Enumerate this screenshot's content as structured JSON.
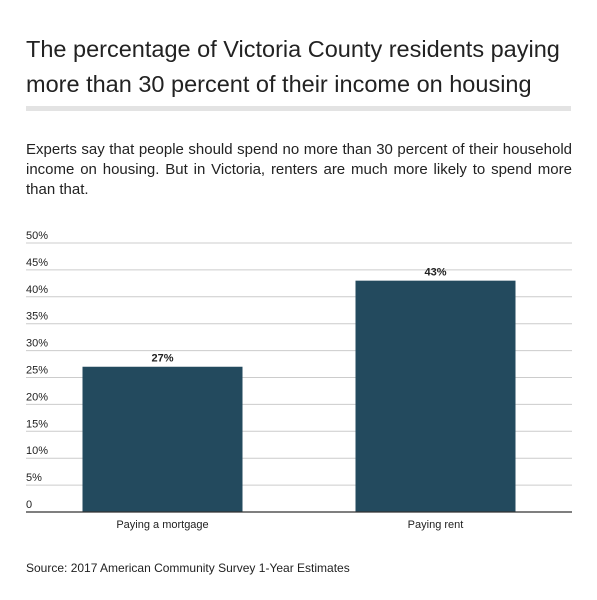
{
  "title": "The percentage of Victoria County residents paying more than 30 percent of their income on housing",
  "subtitle": "Experts say that people should spend no more than 30 percent of their household income on housing. But in Victoria, renters are much more likely to spend more than that.",
  "source": "Source: 2017 American Community Survey 1-Year Estimates",
  "colors": {
    "bar": "#234a5e",
    "grid": "#cccccc",
    "axis": "#333333"
  },
  "chart_data": {
    "type": "bar",
    "categories": [
      "Paying a mortgage",
      "Paying rent"
    ],
    "values": [
      27,
      43
    ],
    "data_labels": [
      "27%",
      "43%"
    ],
    "y_ticks": [
      0,
      5,
      10,
      15,
      20,
      25,
      30,
      35,
      40,
      45,
      50
    ],
    "y_tick_labels": [
      "0",
      "5%",
      "10%",
      "15%",
      "20%",
      "25%",
      "30%",
      "35%",
      "40%",
      "45%",
      "50%"
    ],
    "ylim": [
      0,
      50
    ],
    "grid": true,
    "legend": "none"
  }
}
